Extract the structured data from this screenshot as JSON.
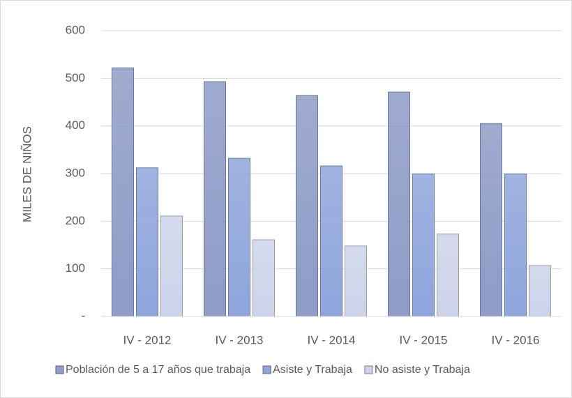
{
  "chart_data": {
    "type": "bar",
    "y_axis_label": "MILES DE NIÑOS",
    "categories": [
      "IV - 2012",
      "IV - 2013",
      "IV - 2014",
      "IV - 2015",
      "IV - 2016"
    ],
    "series": [
      {
        "name": "Población de 5 a 17 años que trabaja",
        "color": "#8e9cc6",
        "values": [
          522,
          493,
          464,
          471,
          405
        ]
      },
      {
        "name": "Asiste y Trabaja",
        "color": "#8fa5dc",
        "values": [
          312,
          332,
          316,
          299,
          299
        ]
      },
      {
        "name": "No asiste y Trabaja",
        "color": "#cdd4ea",
        "values": [
          211,
          161,
          148,
          173,
          107
        ]
      }
    ],
    "ylim": [
      0,
      600
    ],
    "yticks": [
      {
        "value": 0,
        "label": "-"
      },
      100,
      200,
      300,
      400,
      500,
      600
    ],
    "grid": true
  }
}
